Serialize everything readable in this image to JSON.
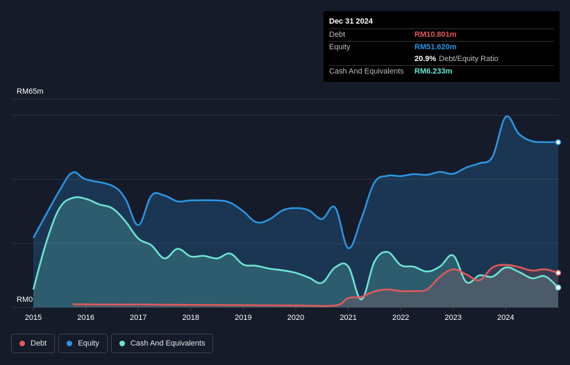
{
  "tooltip": {
    "date": "Dec 31 2024",
    "rows": [
      {
        "label": "Debt",
        "value": "RM10.801m",
        "color": "#e05a5a"
      },
      {
        "label": "Equity",
        "value": "RM51.620m",
        "color": "#2d95e3"
      },
      {
        "label": "",
        "value": "20.9%",
        "sub": "Debt/Equity Ratio",
        "color": "#ffffff"
      },
      {
        "label": "Cash And Equivalents",
        "value": "RM6.233m",
        "color": "#6ee4d3"
      }
    ]
  },
  "legend": [
    {
      "label": "Debt",
      "color": "#e05a5a"
    },
    {
      "label": "Equity",
      "color": "#2d95e3"
    },
    {
      "label": "Cash And Equivalents",
      "color": "#6ee4d3"
    }
  ],
  "chart_data": {
    "type": "area",
    "title": "",
    "xlabel": "",
    "ylabel": "",
    "y_tick_labels": [
      "RM0",
      "RM65m"
    ],
    "ylim": [
      0,
      65
    ],
    "xlim": [
      2015.0,
      2025.0
    ],
    "x_tick_labels": [
      "2015",
      "2016",
      "2017",
      "2018",
      "2019",
      "2020",
      "2021",
      "2022",
      "2023",
      "2024"
    ],
    "grid": true,
    "series": [
      {
        "name": "Equity",
        "color": "#2d95e3",
        "points": [
          [
            2015.0,
            21.7
          ],
          [
            2015.5,
            36.5
          ],
          [
            2015.75,
            42.1
          ],
          [
            2016.0,
            40.0
          ],
          [
            2016.5,
            38.0
          ],
          [
            2016.75,
            34.0
          ],
          [
            2017.0,
            25.7
          ],
          [
            2017.25,
            34.9
          ],
          [
            2017.5,
            34.9
          ],
          [
            2017.75,
            33.1
          ],
          [
            2018.0,
            33.4
          ],
          [
            2018.5,
            33.4
          ],
          [
            2018.75,
            32.7
          ],
          [
            2019.0,
            30.0
          ],
          [
            2019.25,
            26.6
          ],
          [
            2019.5,
            27.5
          ],
          [
            2019.75,
            30.3
          ],
          [
            2020.0,
            31.0
          ],
          [
            2020.25,
            30.3
          ],
          [
            2020.5,
            27.6
          ],
          [
            2020.75,
            31.2
          ],
          [
            2021.0,
            18.5
          ],
          [
            2021.25,
            27.7
          ],
          [
            2021.5,
            39.0
          ],
          [
            2021.75,
            41.1
          ],
          [
            2022.0,
            41.0
          ],
          [
            2022.25,
            41.6
          ],
          [
            2022.5,
            41.4
          ],
          [
            2022.75,
            42.3
          ],
          [
            2023.0,
            41.7
          ],
          [
            2023.25,
            43.7
          ],
          [
            2023.5,
            45.0
          ],
          [
            2023.75,
            47.1
          ],
          [
            2024.0,
            59.5
          ],
          [
            2024.25,
            54.2
          ],
          [
            2024.5,
            51.9
          ],
          [
            2024.75,
            51.6
          ],
          [
            2025.0,
            51.6
          ]
        ]
      },
      {
        "name": "Cash And Equivalents",
        "color": "#6ee4d3",
        "points": [
          [
            2015.0,
            5.6
          ],
          [
            2015.25,
            20.5
          ],
          [
            2015.5,
            31.0
          ],
          [
            2015.75,
            34.2
          ],
          [
            2016.0,
            33.9
          ],
          [
            2016.25,
            32.2
          ],
          [
            2016.5,
            31.0
          ],
          [
            2016.75,
            27.0
          ],
          [
            2017.0,
            21.5
          ],
          [
            2017.25,
            19.4
          ],
          [
            2017.5,
            15.3
          ],
          [
            2017.75,
            18.3
          ],
          [
            2018.0,
            15.9
          ],
          [
            2018.25,
            16.1
          ],
          [
            2018.5,
            15.3
          ],
          [
            2018.75,
            16.8
          ],
          [
            2019.0,
            13.4
          ],
          [
            2019.25,
            13.0
          ],
          [
            2019.5,
            12.1
          ],
          [
            2019.75,
            11.6
          ],
          [
            2020.0,
            10.8
          ],
          [
            2020.25,
            9.3
          ],
          [
            2020.5,
            7.7
          ],
          [
            2020.75,
            12.5
          ],
          [
            2021.0,
            12.8
          ],
          [
            2021.25,
            2.5
          ],
          [
            2021.5,
            14.3
          ],
          [
            2021.75,
            17.3
          ],
          [
            2022.0,
            13.2
          ],
          [
            2022.25,
            12.7
          ],
          [
            2022.5,
            11.2
          ],
          [
            2022.75,
            12.8
          ],
          [
            2023.0,
            16.2
          ],
          [
            2023.25,
            7.9
          ],
          [
            2023.5,
            10.0
          ],
          [
            2023.75,
            9.6
          ],
          [
            2024.0,
            12.5
          ],
          [
            2024.25,
            11.1
          ],
          [
            2024.5,
            9.1
          ],
          [
            2024.75,
            9.7
          ],
          [
            2025.0,
            6.2
          ]
        ]
      },
      {
        "name": "Debt",
        "color": "#e05a5a",
        "points": [
          [
            2015.75,
            1.0
          ],
          [
            2016.5,
            0.9
          ],
          [
            2017.0,
            0.9
          ],
          [
            2018.0,
            0.8
          ],
          [
            2019.0,
            0.7
          ],
          [
            2020.0,
            0.6
          ],
          [
            2020.75,
            0.6
          ],
          [
            2021.0,
            2.9
          ],
          [
            2021.25,
            3.3
          ],
          [
            2021.5,
            5.0
          ],
          [
            2021.75,
            5.6
          ],
          [
            2022.0,
            5.1
          ],
          [
            2022.25,
            5.1
          ],
          [
            2022.5,
            5.6
          ],
          [
            2022.75,
            9.6
          ],
          [
            2023.0,
            11.9
          ],
          [
            2023.25,
            10.3
          ],
          [
            2023.5,
            8.5
          ],
          [
            2023.75,
            12.5
          ],
          [
            2024.0,
            13.3
          ],
          [
            2024.25,
            12.6
          ],
          [
            2024.5,
            11.5
          ],
          [
            2024.75,
            11.9
          ],
          [
            2025.0,
            10.8
          ]
        ]
      }
    ]
  }
}
